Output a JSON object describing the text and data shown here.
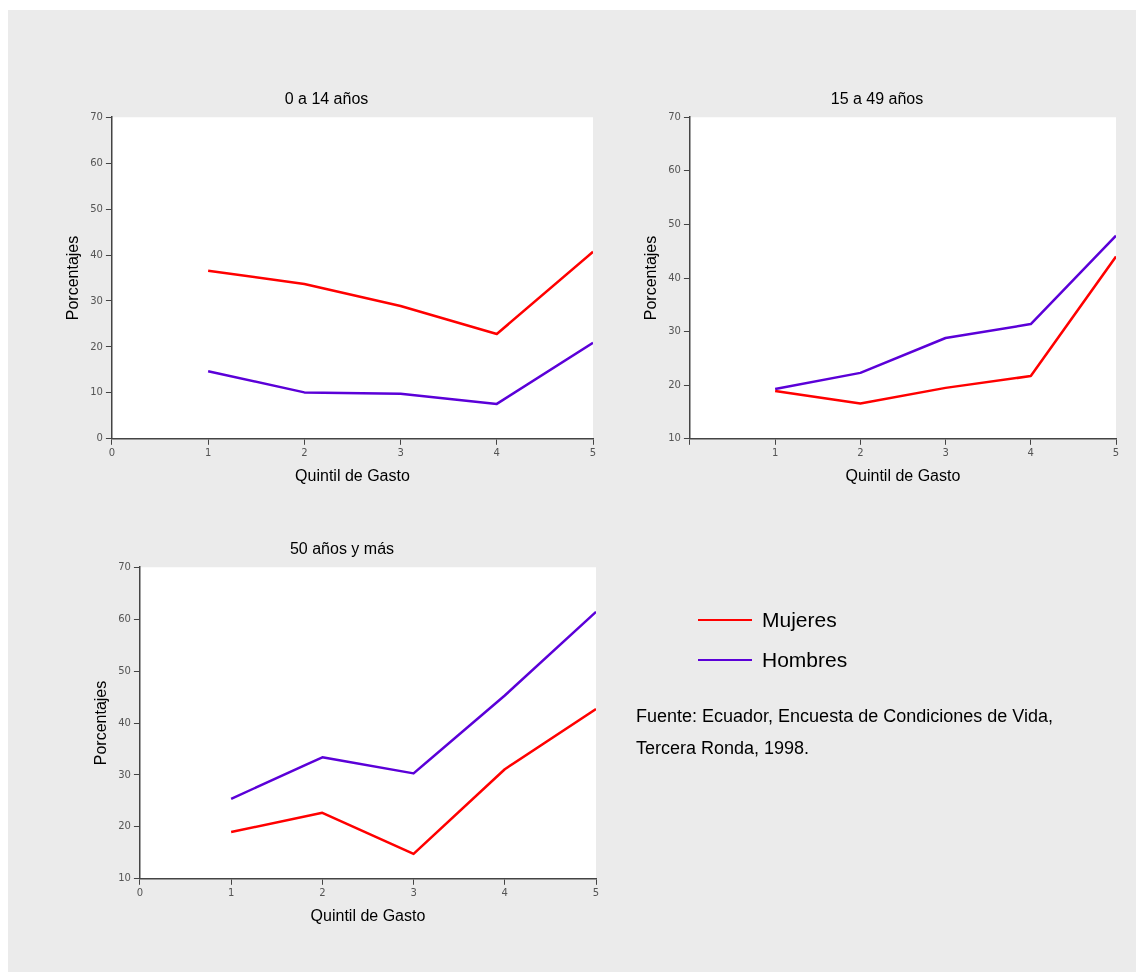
{
  "chart_data": [
    {
      "type": "line",
      "title": "0 a 14 años",
      "xlabel": "Quintil de Gasto",
      "ylabel": "Porcentajes",
      "x": [
        1,
        2,
        3,
        4,
        5
      ],
      "xlim": [
        0,
        5
      ],
      "xticks": [
        0,
        1,
        2,
        3,
        4,
        5
      ],
      "ylim": [
        0,
        70
      ],
      "yticks": [
        0,
        10,
        20,
        30,
        40,
        50,
        60,
        70
      ],
      "grid": false,
      "legend": false,
      "marker": "none",
      "line_style": "solid",
      "series": [
        {
          "color": "#ff0000",
          "values": [
            36.6,
            33.7,
            28.9,
            22.8,
            40.7
          ]
        },
        {
          "color": "#5b00d8",
          "values": [
            14.7,
            10.1,
            9.8,
            7.6,
            20.9
          ]
        }
      ]
    },
    {
      "type": "line",
      "title": "15 a 49 años",
      "xlabel": "Quintil de Gasto",
      "ylabel": "Porcentajes",
      "x": [
        1,
        2,
        3,
        4,
        5
      ],
      "xlim": [
        0,
        5
      ],
      "xticks": [
        {
          "value": 0,
          "label": null
        },
        1,
        2,
        3,
        4,
        5
      ],
      "ylim": [
        10,
        70
      ],
      "yticks": [
        10,
        20,
        30,
        40,
        50,
        60,
        70
      ],
      "grid": false,
      "legend": false,
      "marker": "none",
      "line_style": "solid",
      "series": [
        {
          "color": "#ff0000",
          "values": [
            18.9,
            16.6,
            19.5,
            21.7,
            44.0
          ]
        },
        {
          "color": "#5b00d8",
          "values": [
            19.3,
            22.3,
            28.8,
            31.4,
            47.9
          ]
        }
      ]
    },
    {
      "type": "line",
      "title": "50 años y más",
      "xlabel": "Quintil de Gasto",
      "ylabel": "Porcentajes",
      "x": [
        1,
        2,
        3,
        4,
        5
      ],
      "xlim": [
        0,
        5
      ],
      "xticks": [
        0,
        1,
        2,
        3,
        4,
        5
      ],
      "ylim": [
        10,
        70
      ],
      "yticks": [
        10,
        20,
        30,
        40,
        50,
        60,
        70
      ],
      "grid": false,
      "legend": "right",
      "marker": "none",
      "line_style": "solid",
      "annotations": [
        "Fuente: Ecuador, Encuesta de Condiciones de Vida, Tercera Ronda, 1998."
      ],
      "series": [
        {
          "name": "Mujeres",
          "color": "#ff0000",
          "values": [
            19.0,
            22.7,
            14.8,
            31.1,
            42.7
          ]
        },
        {
          "name": "Hombres",
          "color": "#5b00d8",
          "values": [
            25.4,
            33.4,
            30.3,
            45.3,
            61.4
          ]
        }
      ]
    }
  ]
}
